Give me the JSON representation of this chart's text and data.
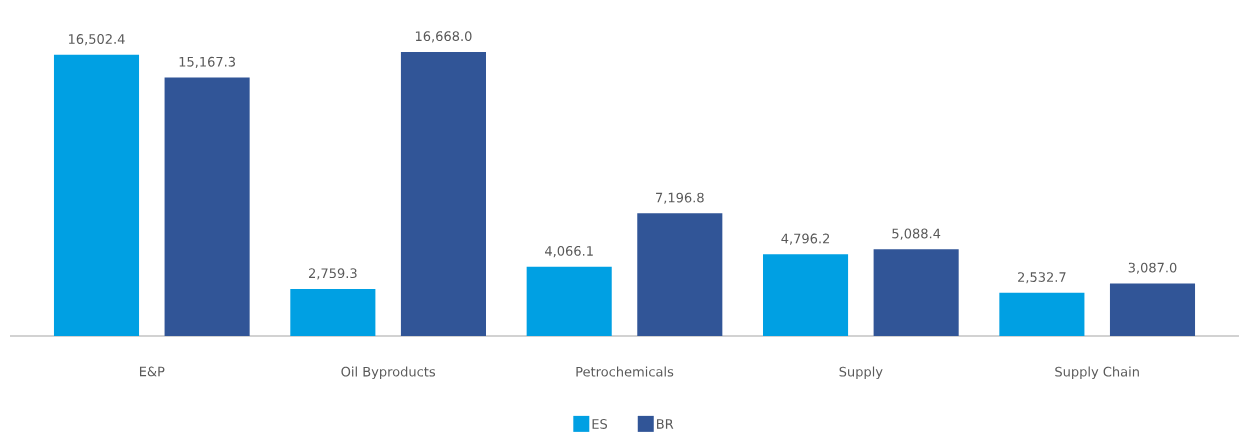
{
  "chart_data": {
    "type": "bar",
    "categories": [
      "E&P",
      "Oil Byproducts",
      "Petrochemicals",
      "Supply",
      "Supply Chain"
    ],
    "series": [
      {
        "name": "ES",
        "color": "#00a0e3",
        "values": [
          16502.4,
          2759.3,
          4066.1,
          4796.2,
          2532.7
        ],
        "value_labels": [
          "16,502.4",
          "2,759.3",
          "4,066.1",
          "4,796.2",
          "2,532.7"
        ]
      },
      {
        "name": "BR",
        "color": "#315597",
        "values": [
          15167.3,
          16668.0,
          7196.8,
          5088.4,
          3087.0
        ],
        "value_labels": [
          "15,167.3",
          "16,668.0",
          "7,196.8",
          "5,088.4",
          "3,087.0"
        ]
      }
    ],
    "legend": "bottom",
    "grid": false,
    "tick_labels": "x"
  }
}
